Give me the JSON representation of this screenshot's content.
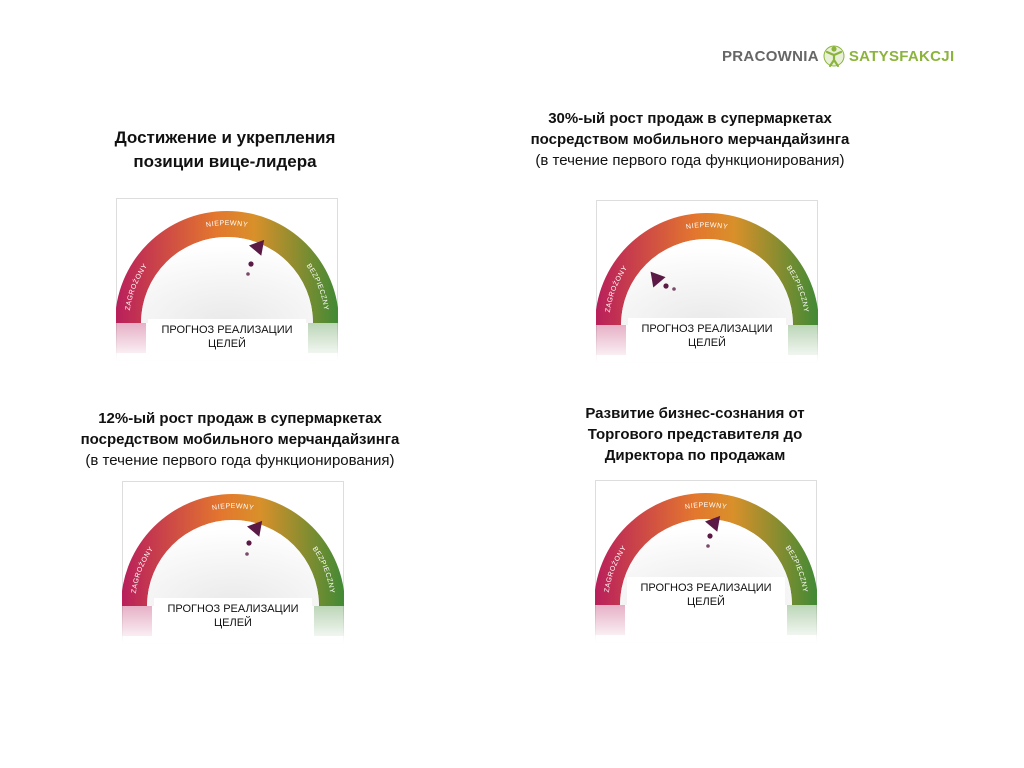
{
  "logo": {
    "word1": "PRACOWNIA",
    "word2": "SATYSFAKCJI",
    "icon": "person-figure-icon",
    "colors": {
      "gray": "#666666",
      "green": "#8cb43c"
    }
  },
  "gauge_labels": {
    "left": "ZAGROŻONY",
    "top": "NIEPEWNY",
    "right": "BEZPIECZNY",
    "box_line1": "ПРОГНОЗ РЕАЛИЗАЦИИ",
    "box_line2": "ЦЕЛЕЙ"
  },
  "colors": {
    "red": "#b81e5c",
    "orange": "#e3772e",
    "green": "#3f8a35",
    "pointer": "#5a1a45"
  },
  "goals": [
    {
      "line1": "Достижение и укрепления",
      "line2": "позиции вице-лидера",
      "status": "NIEPEWNY"
    },
    {
      "line1": "30%-ый рост продаж в супермаркетах",
      "line2": "посредством мобильного мерчандайзинга",
      "line3": "(в течение первого года функционирования)",
      "status": "ZAGROŻONY"
    },
    {
      "line1": "12%-ый рост продаж в супермаркетах",
      "line2": "посредством мобильного мерчандайзинга",
      "line3": "(в течение первого года функционирования)",
      "status": "NIEPEWNY"
    },
    {
      "line1": "Развитие бизнес-сознания от",
      "line2": "Торгового представителя до",
      "line3": "Директора по продажам",
      "status": "NIEPEWNY"
    }
  ]
}
